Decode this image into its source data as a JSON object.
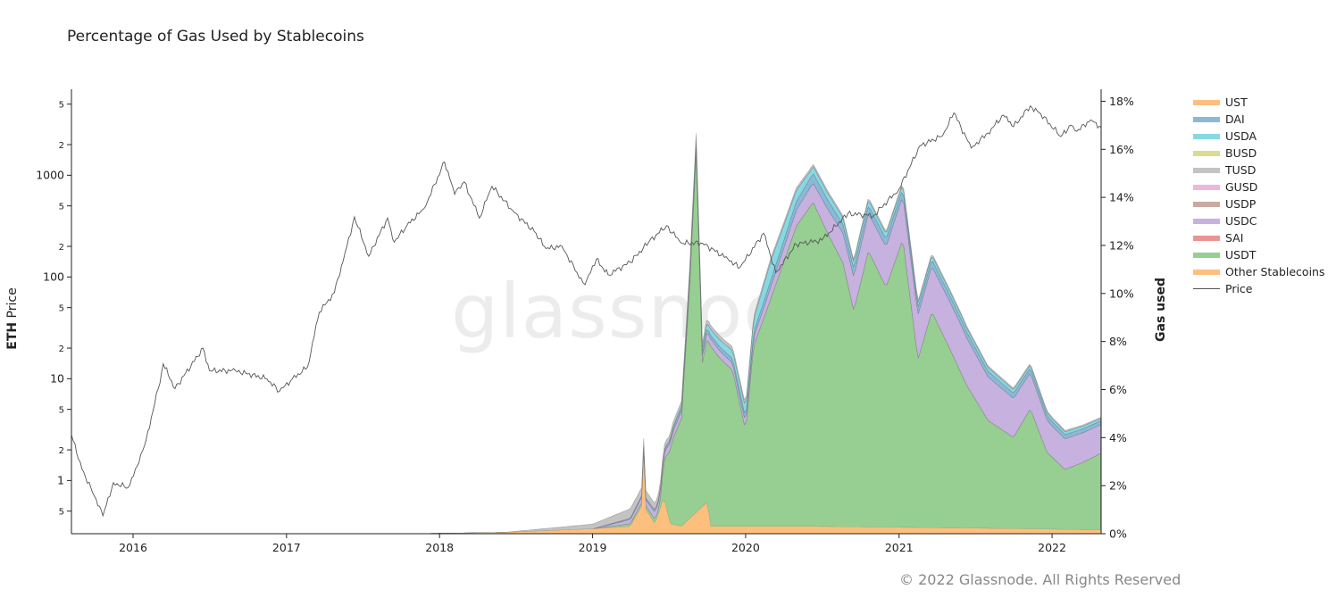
{
  "chart_data": {
    "type": "area",
    "title": "Percentage of Gas Used by Stablecoins",
    "watermark": "glassnode",
    "copyright": "© 2022 Glassnode. All Rights Reserved",
    "y_left": {
      "label_bold": "ETH",
      "label_rest": " Price",
      "scale": "log",
      "range": [
        0.3,
        7000
      ]
    },
    "y_right": {
      "label": "Gas used",
      "range": [
        0,
        18.5
      ],
      "tick_labels": [
        "0%",
        "2%",
        "4%",
        "6%",
        "8%",
        "10%",
        "12%",
        "14%",
        "16%",
        "18%"
      ]
    },
    "x_ticks": [
      "2016",
      "2017",
      "2018",
      "2019",
      "2020",
      "2021",
      "2022"
    ],
    "x_range": [
      "2015-08-07",
      "2022-04-28"
    ],
    "grid": false,
    "legend_position": "right",
    "legend": [
      {
        "name": "UST",
        "color": "#fdbf7e"
      },
      {
        "name": "DAI",
        "color": "#8ab9d8"
      },
      {
        "name": "USDA",
        "color": "#86d9e3"
      },
      {
        "name": "BUSD",
        "color": "#dbdc8e"
      },
      {
        "name": "TUSD",
        "color": "#c3c3c3"
      },
      {
        "name": "GUSD",
        "color": "#efb5dc"
      },
      {
        "name": "USDP",
        "color": "#c9aaa3"
      },
      {
        "name": "USDC",
        "color": "#c7b1df"
      },
      {
        "name": "SAI",
        "color": "#ea9493"
      },
      {
        "name": "USDT",
        "color": "#96cf91"
      },
      {
        "name": "Other Stablecoins",
        "color": "#fdbf7e"
      },
      {
        "name": "Price",
        "color": "#555555",
        "line": true
      }
    ],
    "price_series": {
      "name": "Price",
      "points": [
        [
          "2015-08-07",
          2.8
        ],
        [
          "2015-09-01",
          1.3
        ],
        [
          "2015-10-01",
          0.7
        ],
        [
          "2015-10-21",
          0.45
        ],
        [
          "2015-11-15",
          0.95
        ],
        [
          "2015-12-20",
          0.85
        ],
        [
          "2016-01-15",
          1.5
        ],
        [
          "2016-02-01",
          2.5
        ],
        [
          "2016-03-01",
          8
        ],
        [
          "2016-03-13",
          14
        ],
        [
          "2016-04-10",
          8
        ],
        [
          "2016-06-16",
          20
        ],
        [
          "2016-07-01",
          12
        ],
        [
          "2016-09-01",
          12
        ],
        [
          "2016-11-15",
          10
        ],
        [
          "2016-12-15",
          7.5
        ],
        [
          "2017-01-15",
          10
        ],
        [
          "2017-02-20",
          13
        ],
        [
          "2017-03-20",
          45
        ],
        [
          "2017-04-25",
          70
        ],
        [
          "2017-05-25",
          200
        ],
        [
          "2017-06-12",
          390
        ],
        [
          "2017-07-16",
          160
        ],
        [
          "2017-08-30",
          380
        ],
        [
          "2017-09-15",
          220
        ],
        [
          "2017-10-15",
          320
        ],
        [
          "2017-11-25",
          470
        ],
        [
          "2018-01-13",
          1350
        ],
        [
          "2018-02-06",
          650
        ],
        [
          "2018-03-01",
          860
        ],
        [
          "2018-04-06",
          380
        ],
        [
          "2018-05-06",
          780
        ],
        [
          "2018-06-28",
          430
        ],
        [
          "2018-08-15",
          280
        ],
        [
          "2018-09-12",
          190
        ],
        [
          "2018-10-20",
          200
        ],
        [
          "2018-11-25",
          110
        ],
        [
          "2018-12-14",
          84
        ],
        [
          "2019-01-10",
          150
        ],
        [
          "2019-02-07",
          105
        ],
        [
          "2019-04-01",
          140
        ],
        [
          "2019-05-15",
          220
        ],
        [
          "2019-06-26",
          320
        ],
        [
          "2019-08-01",
          215
        ],
        [
          "2019-09-20",
          215
        ],
        [
          "2019-11-20",
          150
        ],
        [
          "2019-12-18",
          123
        ],
        [
          "2020-02-13",
          270
        ],
        [
          "2020-03-13",
          110
        ],
        [
          "2020-05-01",
          210
        ],
        [
          "2020-07-01",
          230
        ],
        [
          "2020-09-01",
          420
        ],
        [
          "2020-11-01",
          400
        ],
        [
          "2021-01-01",
          730
        ],
        [
          "2021-02-20",
          1950
        ],
        [
          "2021-04-15",
          2450
        ],
        [
          "2021-05-12",
          4100
        ],
        [
          "2021-06-22",
          1850
        ],
        [
          "2021-08-01",
          2600
        ],
        [
          "2021-09-07",
          3900
        ],
        [
          "2021-10-01",
          3000
        ],
        [
          "2021-11-10",
          4800
        ],
        [
          "2021-12-05",
          4000
        ],
        [
          "2022-01-22",
          2400
        ],
        [
          "2022-02-15",
          3100
        ],
        [
          "2022-03-01",
          2700
        ],
        [
          "2022-04-03",
          3500
        ],
        [
          "2022-04-28",
          2950
        ]
      ]
    },
    "area_series": [
      {
        "name": "Other Stablecoins",
        "color": "#fdbf7e",
        "points": [
          [
            "2017-11-01",
            0
          ],
          [
            "2018-06-01",
            0.05
          ],
          [
            "2019-01-01",
            0.2
          ],
          [
            "2019-04-01",
            0.3
          ],
          [
            "2019-04-30",
            1.2
          ],
          [
            "2019-05-05",
            4.5
          ],
          [
            "2019-05-08",
            1.0
          ],
          [
            "2019-05-30",
            0.4
          ],
          [
            "2019-06-20",
            1.5
          ],
          [
            "2019-07-05",
            0.4
          ],
          [
            "2019-08-01",
            0.3
          ],
          [
            "2019-10-01",
            1.3
          ],
          [
            "2019-10-10",
            0.3
          ],
          [
            "2020-06-01",
            0.3
          ],
          [
            "2021-11-01",
            0.2
          ],
          [
            "2022-04-28",
            0.15
          ]
        ]
      },
      {
        "name": "USDT",
        "color": "#96cf91",
        "points": [
          [
            "2018-06-01",
            0
          ],
          [
            "2019-01-01",
            0
          ],
          [
            "2019-06-10",
            0.2
          ],
          [
            "2019-06-24",
            2.0
          ],
          [
            "2019-07-10",
            3.5
          ],
          [
            "2019-08-01",
            4.5
          ],
          [
            "2019-08-20",
            9.5
          ],
          [
            "2019-09-05",
            15.0
          ],
          [
            "2019-09-20",
            6.0
          ],
          [
            "2019-10-10",
            7.5
          ],
          [
            "2019-11-01",
            7.0
          ],
          [
            "2019-12-01",
            6.5
          ],
          [
            "2020-01-01",
            4.0
          ],
          [
            "2020-01-20",
            7.5
          ],
          [
            "2020-02-20",
            9.0
          ],
          [
            "2020-04-01",
            11.0
          ],
          [
            "2020-05-01",
            12.5
          ],
          [
            "2020-06-10",
            13.5
          ],
          [
            "2020-07-15",
            12.2
          ],
          [
            "2020-08-20",
            11.0
          ],
          [
            "2020-09-15",
            9.0
          ],
          [
            "2020-10-20",
            11.5
          ],
          [
            "2020-12-01",
            10.0
          ],
          [
            "2021-01-10",
            12.0
          ],
          [
            "2021-02-15",
            7.0
          ],
          [
            "2021-03-20",
            9.0
          ],
          [
            "2021-05-01",
            7.5
          ],
          [
            "2021-06-10",
            6.0
          ],
          [
            "2021-08-01",
            4.5
          ],
          [
            "2021-10-01",
            3.8
          ],
          [
            "2021-11-10",
            5.0
          ],
          [
            "2021-12-20",
            3.2
          ],
          [
            "2022-02-01",
            2.5
          ],
          [
            "2022-03-15",
            2.8
          ],
          [
            "2022-04-28",
            3.2
          ]
        ]
      },
      {
        "name": "USDC",
        "color": "#c7b1df",
        "points": [
          [
            "2019-01-01",
            0
          ],
          [
            "2019-06-01",
            0.3
          ],
          [
            "2020-01-01",
            0.3
          ],
          [
            "2020-06-10",
            0.8
          ],
          [
            "2020-10-01",
            1.5
          ],
          [
            "2021-01-10",
            1.8
          ],
          [
            "2021-06-01",
            2.0
          ],
          [
            "2021-11-10",
            1.5
          ],
          [
            "2022-01-01",
            1.3
          ],
          [
            "2022-04-28",
            1.2
          ]
        ]
      },
      {
        "name": "DAI",
        "color": "#8ab9d8",
        "points": [
          [
            "2019-01-01",
            0
          ],
          [
            "2020-01-01",
            0.2
          ],
          [
            "2020-06-10",
            0.4
          ],
          [
            "2021-01-10",
            0.3
          ],
          [
            "2022-04-28",
            0.15
          ]
        ]
      },
      {
        "name": "USDA",
        "color": "#86d9e3",
        "points": [
          [
            "2019-06-01",
            0
          ],
          [
            "2020-01-01",
            0.4
          ],
          [
            "2020-03-01",
            0.8
          ],
          [
            "2020-06-01",
            0.3
          ],
          [
            "2021-01-01",
            0.2
          ],
          [
            "2022-04-28",
            0.1
          ]
        ]
      },
      {
        "name": "TUSD",
        "color": "#c3c3c3",
        "points": [
          [
            "2018-06-01",
            0
          ],
          [
            "2019-01-01",
            0.2
          ],
          [
            "2019-04-01",
            0.4
          ],
          [
            "2019-07-01",
            0.2
          ],
          [
            "2020-06-01",
            0.1
          ],
          [
            "2022-04-28",
            0.05
          ]
        ]
      }
    ]
  }
}
